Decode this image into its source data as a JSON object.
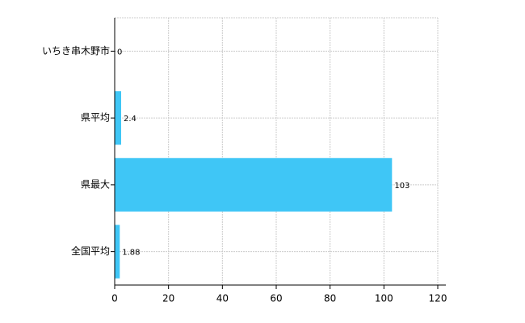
{
  "chart_data": {
    "type": "barh",
    "categories": [
      "いちき串木野市",
      "県平均",
      "県最大",
      "全国平均"
    ],
    "values": [
      0,
      2.4,
      103,
      1.88
    ],
    "color": "#3fc6f6",
    "xlim": [
      0,
      120
    ],
    "xticks": [
      0,
      20,
      40,
      60,
      80,
      100,
      120
    ],
    "grid": true,
    "data_labels": true
  }
}
